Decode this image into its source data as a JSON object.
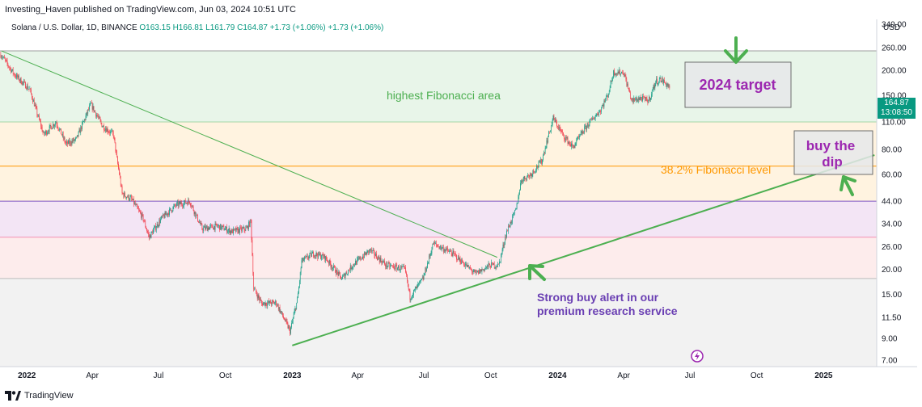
{
  "header": {
    "text": "Investing_Haven published on TradingView.com, Jun 03, 2024 10:51 UTC"
  },
  "legend": {
    "symbol": "Solana / U.S. Dollar, 1D, BINANCE",
    "open": "O163.15",
    "high": "H166.81",
    "low": "L161.79",
    "close": "C164.87",
    "change": "+1.73 (+1.06%)",
    "change2": "+1.73 (+1.06%)"
  },
  "currency": "USD",
  "price_tag": {
    "price": "164.87",
    "countdown": "13:08:50"
  },
  "footer": {
    "brand": "TradingView"
  },
  "colors": {
    "up": "#089981",
    "down": "#f23645",
    "trendline": "#4caf50",
    "arrow": "#4caf50"
  },
  "chart_data": {
    "type": "candlestick",
    "y_scale": "log",
    "ylim": [
      6.5,
      360
    ],
    "y_ticks": [
      "340.00",
      "260.00",
      "200.00",
      "150.00",
      "110.00",
      "80.00",
      "60.00",
      "44.00",
      "34.00",
      "26.00",
      "20.00",
      "15.00",
      "11.50",
      "9.00",
      "7.00"
    ],
    "x_ticks": [
      {
        "date": "2022-01-01",
        "label": "2022",
        "year": true
      },
      {
        "date": "2022-04-01",
        "label": "Apr"
      },
      {
        "date": "2022-07-01",
        "label": "Jul"
      },
      {
        "date": "2022-10-01",
        "label": "Oct"
      },
      {
        "date": "2023-01-01",
        "label": "2023",
        "year": true
      },
      {
        "date": "2023-04-01",
        "label": "Apr"
      },
      {
        "date": "2023-07-01",
        "label": "Jul"
      },
      {
        "date": "2023-10-01",
        "label": "Oct"
      },
      {
        "date": "2024-01-01",
        "label": "2024",
        "year": true
      },
      {
        "date": "2024-04-01",
        "label": "Apr"
      },
      {
        "date": "2024-07-01",
        "label": "Jul"
      },
      {
        "date": "2024-10-01",
        "label": "Oct"
      },
      {
        "date": "2025-01-01",
        "label": "2025",
        "year": true
      }
    ],
    "xlim": [
      "2021-11-25",
      "2025-03-15"
    ],
    "price_path": [
      [
        "2021-11-26",
        240
      ],
      [
        "2021-12-15",
        190
      ],
      [
        "2022-01-05",
        160
      ],
      [
        "2022-01-24",
        95
      ],
      [
        "2022-02-10",
        110
      ],
      [
        "2022-02-24",
        85
      ],
      [
        "2022-03-10",
        90
      ],
      [
        "2022-03-30",
        135
      ],
      [
        "2022-04-15",
        105
      ],
      [
        "2022-04-30",
        95
      ],
      [
        "2022-05-12",
        48
      ],
      [
        "2022-05-25",
        45
      ],
      [
        "2022-06-10",
        36
      ],
      [
        "2022-06-18",
        29
      ],
      [
        "2022-07-05",
        36
      ],
      [
        "2022-07-25",
        42
      ],
      [
        "2022-08-13",
        44
      ],
      [
        "2022-08-30",
        32
      ],
      [
        "2022-09-20",
        33
      ],
      [
        "2022-10-10",
        31
      ],
      [
        "2022-10-30",
        32
      ],
      [
        "2022-11-05",
        35
      ],
      [
        "2022-11-09",
        16
      ],
      [
        "2022-11-20",
        13.5
      ],
      [
        "2022-12-10",
        13.6
      ],
      [
        "2022-12-29",
        9.8
      ],
      [
        "2023-01-08",
        14
      ],
      [
        "2023-01-14",
        22
      ],
      [
        "2023-01-30",
        24
      ],
      [
        "2023-02-15",
        23
      ],
      [
        "2023-03-10",
        18
      ],
      [
        "2023-03-25",
        21
      ],
      [
        "2023-04-18",
        25
      ],
      [
        "2023-05-10",
        21
      ],
      [
        "2023-06-05",
        20
      ],
      [
        "2023-06-12",
        14.5
      ],
      [
        "2023-06-30",
        18
      ],
      [
        "2023-07-14",
        27
      ],
      [
        "2023-08-10",
        24
      ],
      [
        "2023-09-10",
        19
      ],
      [
        "2023-09-30",
        21
      ],
      [
        "2023-10-12",
        21
      ],
      [
        "2023-10-23",
        31
      ],
      [
        "2023-11-05",
        40
      ],
      [
        "2023-11-12",
        56
      ],
      [
        "2023-11-25",
        60
      ],
      [
        "2023-12-10",
        70
      ],
      [
        "2023-12-26",
        115
      ],
      [
        "2024-01-08",
        95
      ],
      [
        "2024-01-22",
        82
      ],
      [
        "2024-02-10",
        105
      ],
      [
        "2024-02-28",
        125
      ],
      [
        "2024-03-10",
        150
      ],
      [
        "2024-03-18",
        195
      ],
      [
        "2024-04-01",
        195
      ],
      [
        "2024-04-12",
        140
      ],
      [
        "2024-04-24",
        145
      ],
      [
        "2024-05-05",
        140
      ],
      [
        "2024-05-15",
        175
      ],
      [
        "2024-05-22",
        180
      ],
      [
        "2024-06-03",
        164.87
      ]
    ],
    "bands": [
      {
        "from": 110,
        "to": 250,
        "color": "#e8f5e9"
      },
      {
        "from": 44,
        "to": 110,
        "color": "#fff3e0"
      },
      {
        "from": 29,
        "to": 44,
        "color": "#f3e5f5"
      },
      {
        "from": 18,
        "to": 29,
        "color": "#fdecec"
      },
      {
        "from": 6.5,
        "to": 18,
        "color": "#f2f2f2"
      }
    ],
    "hlines": [
      {
        "value": 250,
        "color": "#9e9e9e"
      },
      {
        "value": 110,
        "color": "#a5d6a7"
      },
      {
        "value": 66,
        "color": "#ff9800"
      },
      {
        "value": 44,
        "color": "#7e57c2"
      },
      {
        "value": 29,
        "color": "#f48fb1"
      },
      {
        "value": 18,
        "color": "#bdbdbd"
      }
    ],
    "trendlines": [
      {
        "from": [
          "2021-11-27",
          250
        ],
        "to": [
          "2023-10-10",
          23
        ],
        "color": "#4caf50",
        "width": 1
      },
      {
        "from": [
          "2023-01-01",
          8.3
        ],
        "to": [
          "2025-03-12",
          75
        ],
        "color": "#4caf50",
        "width": 2
      }
    ],
    "annotations": [
      {
        "text": "highest Fibonacci area",
        "color": "#4caf50"
      },
      {
        "text": "38.2% Fibonacci level",
        "color": "#ff9800"
      },
      {
        "text": "Strong buy alert in our",
        "color": "#6a3fb3"
      },
      {
        "text": "premium research service",
        "color": "#6a3fb3"
      },
      {
        "text": "2024 target",
        "color": "#9c27b0"
      },
      {
        "text": "buy the",
        "color": "#9c27b0"
      },
      {
        "text": "dip",
        "color": "#9c27b0"
      }
    ]
  }
}
